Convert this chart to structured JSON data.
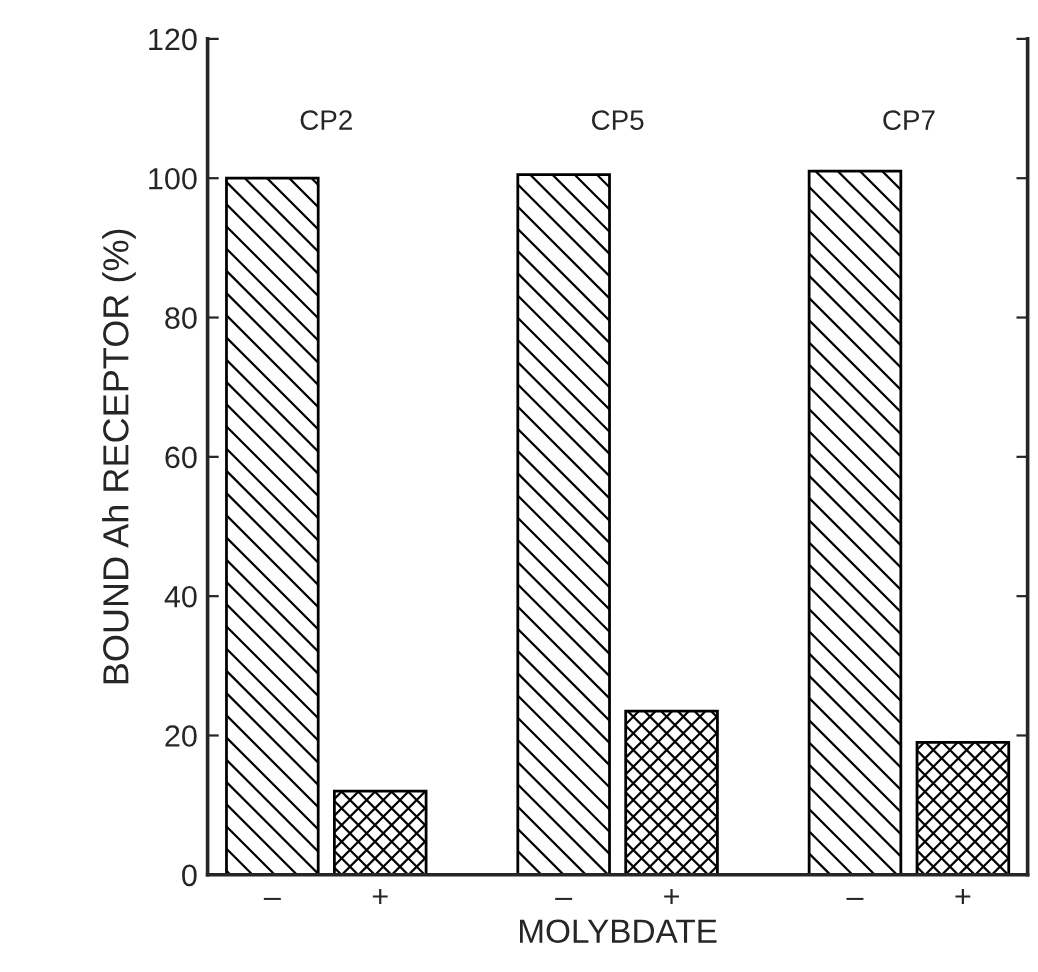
{
  "chart_data": {
    "type": "bar",
    "xlabel": "MOLYBDATE",
    "ylabel": "BOUND Ah RECEPTOR (%)",
    "categories": [
      "–",
      "+",
      "–",
      "+",
      "–",
      "+"
    ],
    "values": [
      100,
      12,
      100.5,
      23.5,
      101,
      19
    ],
    "colors": [
      "#000000",
      "#000000",
      "#000000",
      "#000000",
      "#000000",
      "#000000"
    ],
    "ylim": [
      0,
      120
    ],
    "yticks": [
      0,
      20,
      40,
      60,
      80,
      100,
      120
    ],
    "annotations": [
      "CP2",
      "CP5",
      "CP7"
    ],
    "grid": false,
    "legend": false
  }
}
